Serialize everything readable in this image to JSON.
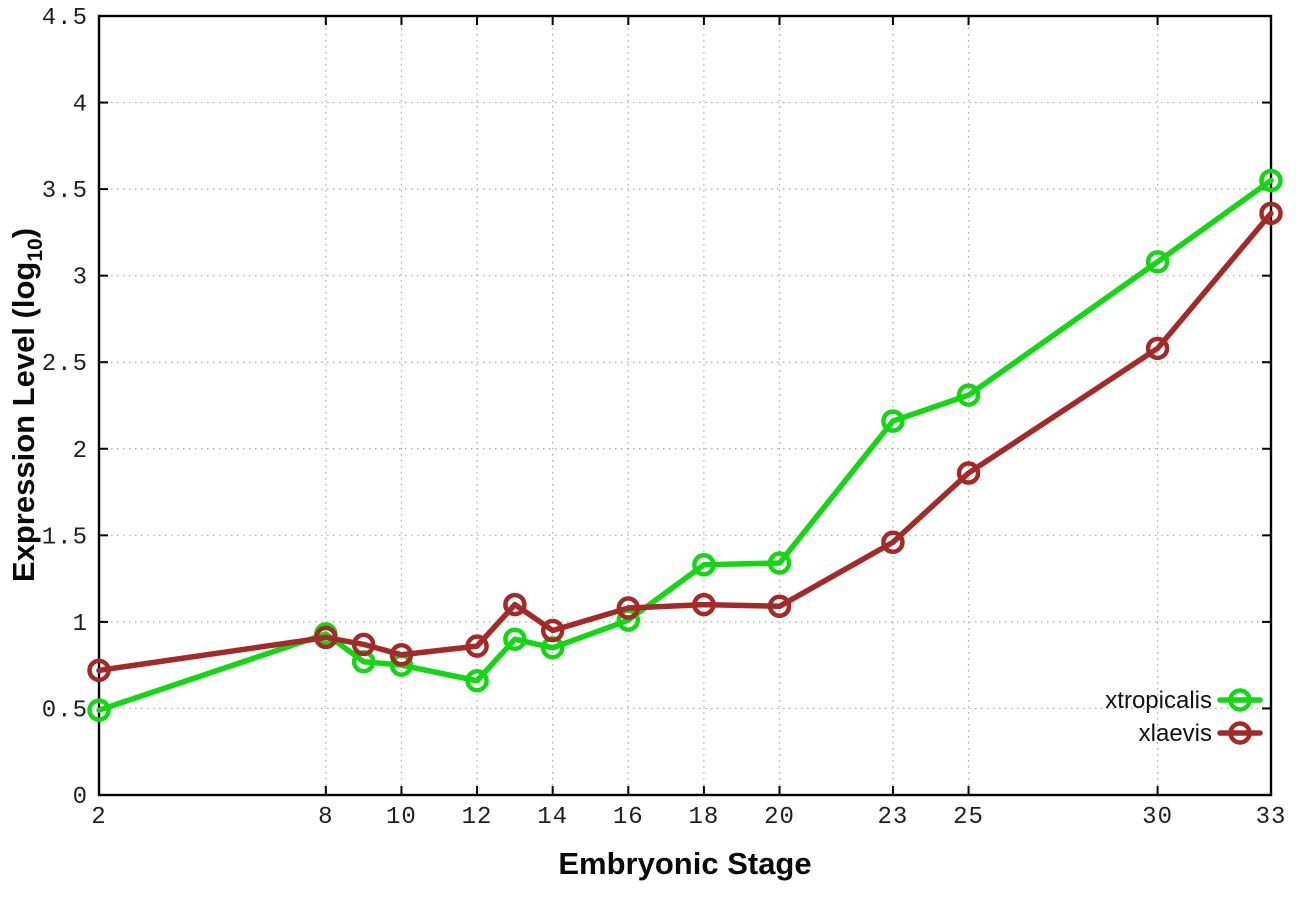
{
  "figure": {
    "background": "#ffffff",
    "frame_color": "#000000",
    "grid_color": "#aaaaaa",
    "tick_color": "#000000"
  },
  "chart_data": {
    "type": "line",
    "title": "",
    "xlabel": "Embryonic Stage",
    "ylabel": {
      "text": "Expression Level (log10)",
      "main": "Expression Level (log",
      "sub": "10",
      "suffix": ")"
    },
    "xlim": [
      2,
      33
    ],
    "ylim": [
      0,
      4.5
    ],
    "x_ticks": [
      2,
      8,
      10,
      12,
      14,
      16,
      18,
      20,
      23,
      25,
      30,
      33
    ],
    "y_ticks": [
      0,
      0.5,
      1,
      1.5,
      2,
      2.5,
      3,
      3.5,
      4,
      4.5
    ],
    "grid": "dotted",
    "legend_position": "inside-bottom-right",
    "x": [
      2,
      8,
      9,
      10,
      12,
      13,
      14,
      16,
      18,
      20,
      23,
      25,
      30,
      33
    ],
    "series": [
      {
        "name": "xtropicalis",
        "color": "#12d712",
        "marker": "open-circle",
        "values": [
          0.49,
          0.93,
          0.77,
          0.75,
          0.66,
          0.9,
          0.85,
          1.01,
          1.33,
          1.34,
          2.16,
          2.31,
          3.08,
          3.55
        ]
      },
      {
        "name": "xlaevis",
        "color": "#a42a2a",
        "marker": "open-circle",
        "values": [
          0.72,
          0.91,
          0.87,
          0.81,
          0.86,
          1.1,
          0.95,
          1.08,
          1.1,
          1.09,
          1.46,
          1.86,
          2.58,
          3.36
        ]
      }
    ]
  }
}
